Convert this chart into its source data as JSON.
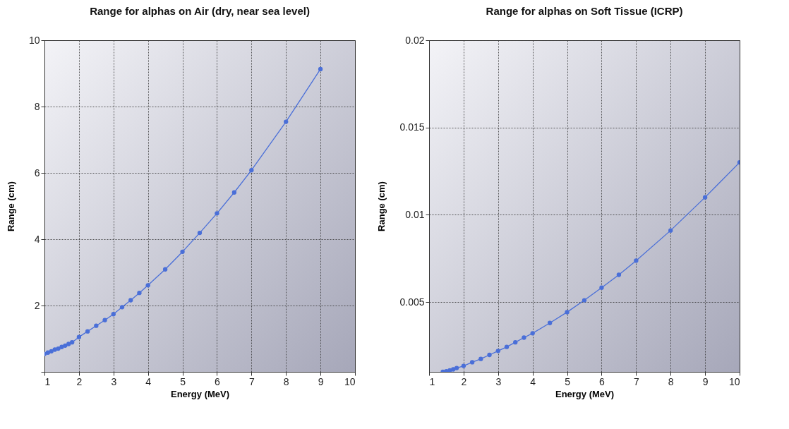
{
  "chart_data": [
    {
      "type": "line",
      "title": "Range for alphas on Air (dry, near sea level)",
      "xlabel": "Energy (MeV)",
      "ylabel": "Range (cm)",
      "x": [
        1,
        1.1,
        1.2,
        1.3,
        1.4,
        1.5,
        1.6,
        1.7,
        1.8,
        2,
        2.25,
        2.5,
        2.75,
        3,
        3.25,
        3.5,
        3.75,
        4,
        4.5,
        5,
        5.5,
        6,
        6.5,
        7,
        8,
        9
      ],
      "series": [
        {
          "color": "#4a6fd8",
          "values": [
            0.54,
            0.58,
            0.62,
            0.67,
            0.7,
            0.75,
            0.79,
            0.84,
            0.89,
            1.05,
            1.22,
            1.39,
            1.56,
            1.74,
            1.95,
            2.16,
            2.38,
            2.61,
            3.09,
            3.62,
            4.19,
            4.78,
            5.41,
            6.08,
            7.54,
            9.13
          ]
        }
      ],
      "xlim": [
        1,
        10
      ],
      "ylim": [
        0,
        10
      ],
      "xticks": [
        1,
        2,
        3,
        4,
        5,
        6,
        7,
        8,
        9,
        10
      ],
      "yticks": [
        {
          "value": 0,
          "label": null
        },
        2,
        4,
        6,
        8,
        10
      ],
      "grid": true,
      "marker": "circle",
      "line_style": "solid"
    },
    {
      "type": "line",
      "title": "Range for alphas on Soft Tissue (ICRP)",
      "xlabel": "Energy (MeV)",
      "ylabel": "Range (cm)",
      "x": [
        1.4,
        1.5,
        1.6,
        1.7,
        1.8,
        2,
        2.25,
        2.5,
        2.75,
        3,
        3.25,
        3.5,
        3.75,
        4,
        4.5,
        5,
        5.5,
        6,
        6.5,
        7,
        8,
        9,
        10
      ],
      "series": [
        {
          "color": "#4a6fd8",
          "values": [
            0.001,
            0.00103,
            0.00108,
            0.00114,
            0.00122,
            0.00134,
            0.00155,
            0.00174,
            0.00197,
            0.0022,
            0.00243,
            0.00269,
            0.00296,
            0.00321,
            0.0038,
            0.00442,
            0.0051,
            0.00582,
            0.00656,
            0.00737,
            0.0091,
            0.011,
            0.013
          ]
        }
      ],
      "xlim": [
        1,
        10
      ],
      "ylim": [
        0.001,
        0.02
      ],
      "xticks": [
        1,
        2,
        3,
        4,
        5,
        6,
        7,
        8,
        9,
        10
      ],
      "yticks": [
        0.005,
        0.01,
        0.015,
        0.02
      ],
      "grid": true,
      "marker": "circle",
      "line_style": "solid"
    }
  ]
}
